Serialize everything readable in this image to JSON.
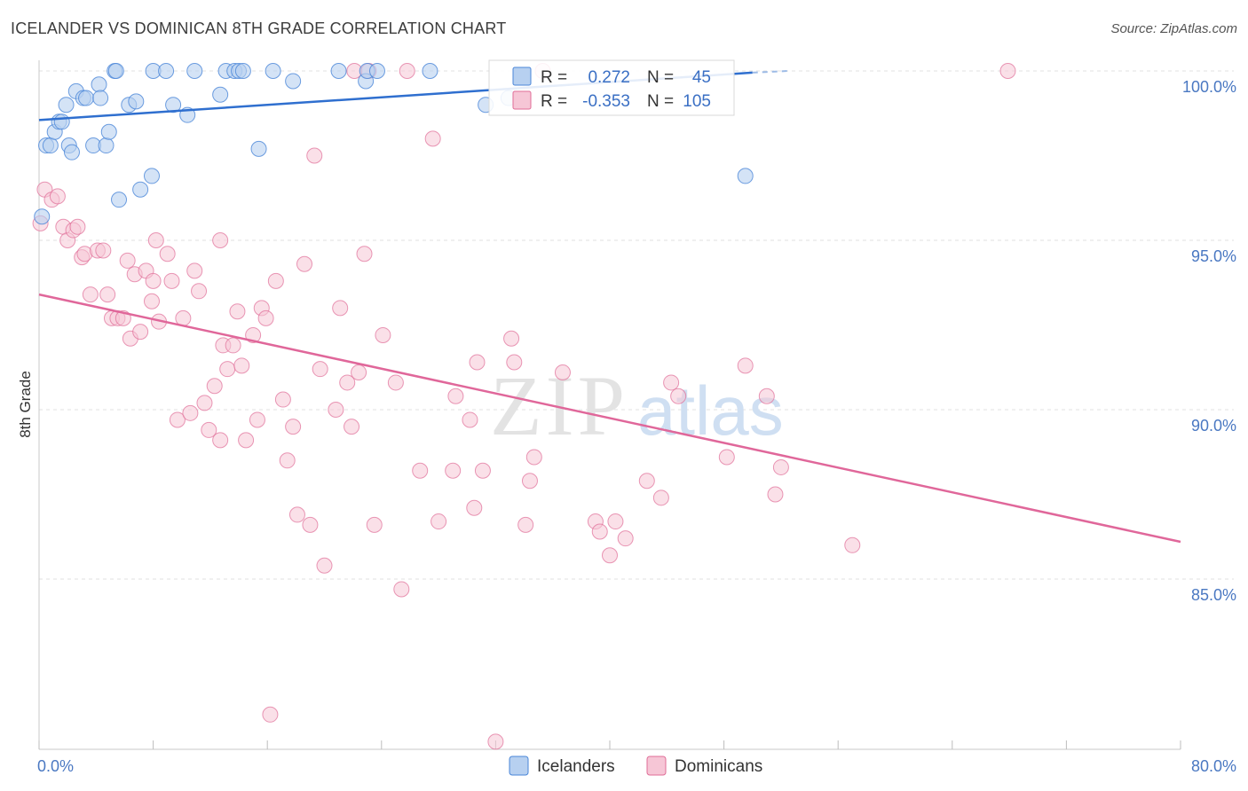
{
  "title": "ICELANDER VS DOMINICAN 8TH GRADE CORRELATION CHART",
  "source": "Source: ZipAtlas.com",
  "watermark": {
    "zip": "ZIP",
    "atlas": "atlas"
  },
  "colors": {
    "icelanders": "#4a86d8",
    "icelanders_fill": "#b7d0f0",
    "dominicans": "#e06c97",
    "dominicans_fill": "#f6c6d6",
    "tick_text": "#4a78c2",
    "grid": "#e2e2e2"
  },
  "chart_data": {
    "type": "scatter",
    "title": "ICELANDER VS DOMINICAN 8TH GRADE CORRELATION CHART",
    "xlabel": "",
    "ylabel": "8th Grade",
    "xlim": [
      0,
      80
    ],
    "ylim": [
      80.5,
      100.8
    ],
    "x_tick_labels": [
      "0.0%",
      "80.0%"
    ],
    "y_ticks": [
      85,
      90,
      95,
      100
    ],
    "y_tick_labels": [
      "85.0%",
      "90.0%",
      "95.0%",
      "100.0%"
    ],
    "grid": true,
    "legend_position": "top-center",
    "stats": [
      {
        "label_r": "R =",
        "r": "0.272",
        "label_n": "N =",
        "n": "45"
      },
      {
        "label_r": "R =",
        "r": "-0.353",
        "label_n": "N =",
        "n": "105"
      }
    ],
    "series": [
      {
        "name": "Icelanders",
        "trend": {
          "x": [
            0,
            50
          ],
          "y": [
            98.55,
            99.95
          ],
          "dashed_to": [
            52.5,
            100.0
          ]
        },
        "points": [
          [
            0.2,
            95.7
          ],
          [
            0.5,
            97.8
          ],
          [
            0.8,
            97.8
          ],
          [
            1.1,
            98.2
          ],
          [
            1.4,
            98.5
          ],
          [
            1.6,
            98.5
          ],
          [
            1.9,
            99.0
          ],
          [
            2.1,
            97.8
          ],
          [
            2.3,
            97.6
          ],
          [
            2.6,
            99.4
          ],
          [
            3.1,
            99.2
          ],
          [
            3.3,
            99.2
          ],
          [
            3.8,
            97.8
          ],
          [
            4.2,
            99.6
          ],
          [
            4.3,
            99.2
          ],
          [
            4.7,
            97.8
          ],
          [
            4.9,
            98.2
          ],
          [
            5.3,
            100.0
          ],
          [
            5.4,
            100.0
          ],
          [
            5.6,
            96.2
          ],
          [
            6.3,
            99.0
          ],
          [
            6.8,
            99.1
          ],
          [
            7.1,
            96.5
          ],
          [
            7.9,
            96.9
          ],
          [
            8.0,
            100.0
          ],
          [
            8.9,
            100.0
          ],
          [
            9.4,
            99.0
          ],
          [
            10.4,
            98.7
          ],
          [
            10.9,
            100.0
          ],
          [
            12.7,
            99.3
          ],
          [
            13.1,
            100.0
          ],
          [
            13.7,
            100.0
          ],
          [
            14.0,
            100.0
          ],
          [
            14.3,
            100.0
          ],
          [
            15.4,
            97.7
          ],
          [
            16.4,
            100.0
          ],
          [
            17.8,
            99.7
          ],
          [
            21.0,
            100.0
          ],
          [
            22.9,
            99.7
          ],
          [
            23.0,
            100.0
          ],
          [
            23.7,
            100.0
          ],
          [
            27.4,
            100.0
          ],
          [
            31.3,
            99.0
          ],
          [
            32.9,
            99.2
          ],
          [
            49.5,
            96.9
          ]
        ]
      },
      {
        "name": "Dominicans",
        "trend": {
          "x": [
            0,
            80
          ],
          "y": [
            93.4,
            86.1
          ]
        },
        "points": [
          [
            0.1,
            95.5
          ],
          [
            0.4,
            96.5
          ],
          [
            0.9,
            96.2
          ],
          [
            1.3,
            96.3
          ],
          [
            1.7,
            95.4
          ],
          [
            2.0,
            95.0
          ],
          [
            2.4,
            95.3
          ],
          [
            2.7,
            95.4
          ],
          [
            3.0,
            94.5
          ],
          [
            3.2,
            94.6
          ],
          [
            3.6,
            93.4
          ],
          [
            4.1,
            94.7
          ],
          [
            4.5,
            94.7
          ],
          [
            4.8,
            93.4
          ],
          [
            5.1,
            92.7
          ],
          [
            5.5,
            92.7
          ],
          [
            5.9,
            92.7
          ],
          [
            6.2,
            94.4
          ],
          [
            6.4,
            92.1
          ],
          [
            6.7,
            94.0
          ],
          [
            7.1,
            92.3
          ],
          [
            7.5,
            94.1
          ],
          [
            7.9,
            93.2
          ],
          [
            8.2,
            95.0
          ],
          [
            8.4,
            92.6
          ],
          [
            9.0,
            94.6
          ],
          [
            9.3,
            93.8
          ],
          [
            9.7,
            89.7
          ],
          [
            10.1,
            92.7
          ],
          [
            10.6,
            89.9
          ],
          [
            10.9,
            94.1
          ],
          [
            11.2,
            93.5
          ],
          [
            11.6,
            90.2
          ],
          [
            11.9,
            89.4
          ],
          [
            12.3,
            90.7
          ],
          [
            12.7,
            89.1
          ],
          [
            12.9,
            91.9
          ],
          [
            13.2,
            91.2
          ],
          [
            13.6,
            91.9
          ],
          [
            13.9,
            92.9
          ],
          [
            14.2,
            91.3
          ],
          [
            14.5,
            89.1
          ],
          [
            15.0,
            92.2
          ],
          [
            15.3,
            89.7
          ],
          [
            15.6,
            93.0
          ],
          [
            15.9,
            92.7
          ],
          [
            16.6,
            93.8
          ],
          [
            17.1,
            90.3
          ],
          [
            17.4,
            88.5
          ],
          [
            17.8,
            89.5
          ],
          [
            18.1,
            86.9
          ],
          [
            18.6,
            94.3
          ],
          [
            19.0,
            86.6
          ],
          [
            19.3,
            97.5
          ],
          [
            19.7,
            91.2
          ],
          [
            20.0,
            85.4
          ],
          [
            20.8,
            90.0
          ],
          [
            21.1,
            93.0
          ],
          [
            21.6,
            90.8
          ],
          [
            21.9,
            89.5
          ],
          [
            22.1,
            100.0
          ],
          [
            22.4,
            91.1
          ],
          [
            22.8,
            94.6
          ],
          [
            23.1,
            100.0
          ],
          [
            23.5,
            86.6
          ],
          [
            24.1,
            92.2
          ],
          [
            25.0,
            90.8
          ],
          [
            25.4,
            84.7
          ],
          [
            25.8,
            100.0
          ],
          [
            26.7,
            88.2
          ],
          [
            27.6,
            98.0
          ],
          [
            28.0,
            86.7
          ],
          [
            29.0,
            88.2
          ],
          [
            29.2,
            90.4
          ],
          [
            30.2,
            89.7
          ],
          [
            30.5,
            87.1
          ],
          [
            30.7,
            91.4
          ],
          [
            31.1,
            88.2
          ],
          [
            32.0,
            80.2
          ],
          [
            33.1,
            92.1
          ],
          [
            33.3,
            91.4
          ],
          [
            34.1,
            86.6
          ],
          [
            34.4,
            87.9
          ],
          [
            34.7,
            88.6
          ],
          [
            35.3,
            100.0
          ],
          [
            36.7,
            91.1
          ],
          [
            39.0,
            86.7
          ],
          [
            39.3,
            86.4
          ],
          [
            40.0,
            85.7
          ],
          [
            40.4,
            86.7
          ],
          [
            41.1,
            86.2
          ],
          [
            42.6,
            87.9
          ],
          [
            43.6,
            87.4
          ],
          [
            44.3,
            90.8
          ],
          [
            44.8,
            90.4
          ],
          [
            48.2,
            88.6
          ],
          [
            49.5,
            91.3
          ],
          [
            51.0,
            90.4
          ],
          [
            51.6,
            87.5
          ],
          [
            52.0,
            88.3
          ],
          [
            57.0,
            86.0
          ],
          [
            67.9,
            100.0
          ],
          [
            16.2,
            81.0
          ],
          [
            12.7,
            95.0
          ],
          [
            8.0,
            93.8
          ]
        ]
      }
    ]
  },
  "legend": {
    "items": [
      {
        "label": "Icelanders"
      },
      {
        "label": "Dominicans"
      }
    ]
  }
}
